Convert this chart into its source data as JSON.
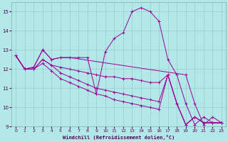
{
  "xlabel": "Windchill (Refroidissement éolien,°C)",
  "xlim": [
    -0.5,
    23.5
  ],
  "ylim": [
    9,
    15.5
  ],
  "yticks": [
    9,
    10,
    11,
    12,
    13,
    14,
    15
  ],
  "xticks": [
    0,
    1,
    2,
    3,
    4,
    5,
    6,
    7,
    8,
    9,
    10,
    11,
    12,
    13,
    14,
    15,
    16,
    17,
    18,
    19,
    20,
    21,
    22,
    23
  ],
  "bg_color": "#b3e8e8",
  "line_color": "#990099",
  "grid_color": "#99cccc",
  "lines": [
    {
      "x": [
        0,
        1,
        2,
        3,
        4,
        5,
        6,
        7,
        8,
        9,
        10,
        11,
        12,
        13,
        14,
        15,
        16,
        17,
        18,
        19,
        20,
        21,
        22,
        23
      ],
      "y": [
        12.7,
        12.0,
        12.1,
        13.0,
        12.5,
        12.6,
        12.6,
        12.6,
        12.6,
        10.7,
        12.9,
        13.6,
        13.9,
        15.0,
        15.2,
        15.0,
        14.5,
        12.5,
        11.7,
        10.2,
        9.1,
        9.5,
        9.2,
        9.2
      ]
    },
    {
      "x": [
        0,
        1,
        2,
        3,
        4,
        5,
        6,
        19,
        20,
        21,
        22,
        23
      ],
      "y": [
        12.7,
        12.0,
        12.1,
        13.0,
        12.5,
        12.6,
        12.6,
        11.7,
        10.2,
        9.1,
        9.5,
        9.2
      ]
    },
    {
      "x": [
        0,
        1,
        2,
        3,
        4,
        5,
        6,
        7,
        8,
        9,
        10,
        11,
        12,
        13,
        14,
        15,
        16,
        17,
        18,
        19,
        20,
        21,
        22,
        23
      ],
      "y": [
        12.7,
        12.0,
        12.0,
        12.5,
        12.2,
        12.1,
        12.0,
        11.9,
        11.8,
        11.7,
        11.6,
        11.6,
        11.5,
        11.5,
        11.4,
        11.3,
        11.3,
        11.7,
        10.2,
        9.1,
        9.5,
        9.2,
        9.2,
        9.2
      ]
    },
    {
      "x": [
        0,
        1,
        2,
        3,
        4,
        5,
        6,
        7,
        8,
        9,
        10,
        11,
        12,
        13,
        14,
        15,
        16,
        17,
        18,
        19,
        20,
        21,
        22,
        23
      ],
      "y": [
        12.7,
        12.0,
        12.0,
        12.5,
        12.2,
        11.8,
        11.6,
        11.4,
        11.2,
        11.0,
        10.9,
        10.8,
        10.7,
        10.6,
        10.5,
        10.4,
        10.3,
        11.7,
        10.2,
        9.1,
        9.5,
        9.2,
        9.2,
        9.2
      ]
    },
    {
      "x": [
        0,
        1,
        2,
        3,
        4,
        5,
        6,
        7,
        8,
        9,
        10,
        11,
        12,
        13,
        14,
        15,
        16,
        17,
        18,
        19,
        20,
        21,
        22,
        23
      ],
      "y": [
        12.7,
        12.0,
        12.0,
        12.3,
        11.9,
        11.5,
        11.3,
        11.1,
        10.9,
        10.7,
        10.6,
        10.4,
        10.3,
        10.2,
        10.1,
        10.0,
        9.9,
        11.7,
        10.2,
        9.1,
        9.5,
        9.2,
        9.2,
        9.2
      ]
    }
  ]
}
